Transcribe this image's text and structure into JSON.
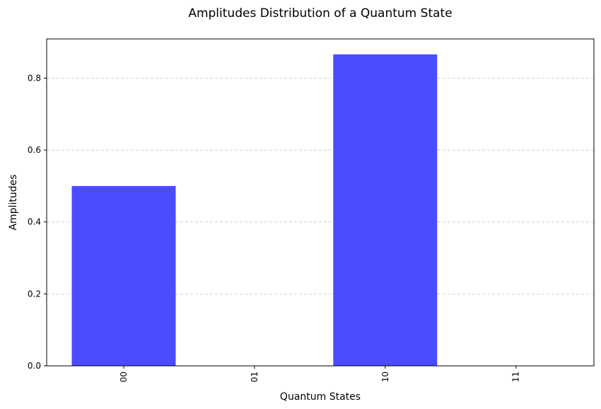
{
  "chart_data": {
    "type": "bar",
    "title": "Amplitudes Distribution of a Quantum State",
    "xlabel": "Quantum States",
    "ylabel": "Amplitudes",
    "categories": [
      "00",
      "01",
      "10",
      "11"
    ],
    "values": [
      0.5,
      0.0,
      0.866,
      0.0
    ],
    "ylim": [
      0,
      0.909
    ],
    "yticks": [
      "0.0",
      "0.2",
      "0.4",
      "0.6",
      "0.8"
    ],
    "ytick_values": [
      0.0,
      0.2,
      0.4,
      0.6,
      0.8
    ],
    "grid": "y-dashed",
    "bar_color": "#4b4bff",
    "legend": "none"
  }
}
